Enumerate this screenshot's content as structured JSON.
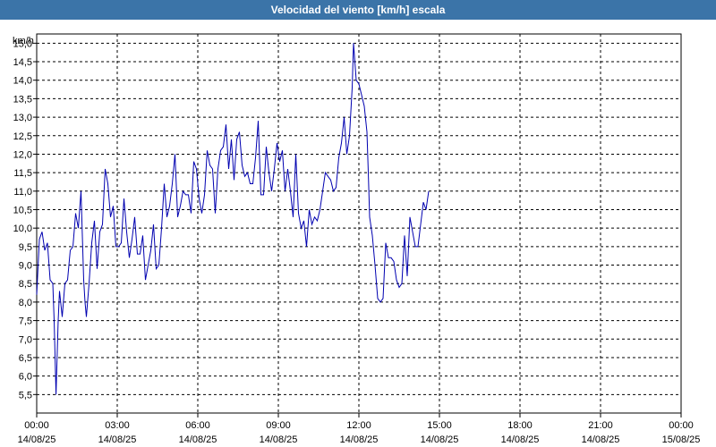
{
  "window": {
    "title": "Velocidad del viento [km/h] escala"
  },
  "colors": {
    "title_bar": "#3b74a8",
    "line": "#0000b0",
    "grid": "#000000",
    "background": "#ffffff"
  },
  "chart_data": {
    "type": "line",
    "title": "Velocidad del viento [km/h] escala",
    "ylabel": "km/h",
    "xlabel": "",
    "ylim": [
      5.0,
      15.25
    ],
    "grid": true,
    "yticks": [
      "5,5",
      "6,0",
      "6,5",
      "7,0",
      "7,5",
      "8,0",
      "8,5",
      "9,0",
      "9,5",
      "10,0",
      "10,5",
      "11,0",
      "11,5",
      "12,0",
      "12,5",
      "13,0",
      "13,5",
      "14,0",
      "14,5",
      "15,0"
    ],
    "xticks": [
      {
        "time": "00:00",
        "date": "14/08/25"
      },
      {
        "time": "03:00",
        "date": "14/08/25"
      },
      {
        "time": "06:00",
        "date": "14/08/25"
      },
      {
        "time": "09:00",
        "date": "14/08/25"
      },
      {
        "time": "12:00",
        "date": "14/08/25"
      },
      {
        "time": "15:00",
        "date": "14/08/25"
      },
      {
        "time": "18:00",
        "date": "14/08/25"
      },
      {
        "time": "21:00",
        "date": "14/08/25"
      },
      {
        "time": "00:00",
        "date": "15/08/25"
      }
    ],
    "series": [
      {
        "values": [
          [
            0.0,
            8.2
          ],
          [
            0.1,
            9.7
          ],
          [
            0.2,
            9.9
          ],
          [
            0.3,
            9.4
          ],
          [
            0.4,
            9.6
          ],
          [
            0.5,
            8.6
          ],
          [
            0.6,
            8.5
          ],
          [
            0.65,
            7.5
          ],
          [
            0.72,
            5.5
          ],
          [
            0.8,
            7.5
          ],
          [
            0.85,
            8.3
          ],
          [
            0.95,
            7.6
          ],
          [
            1.05,
            8.5
          ],
          [
            1.15,
            8.6
          ],
          [
            1.25,
            9.4
          ],
          [
            1.35,
            9.5
          ],
          [
            1.45,
            10.4
          ],
          [
            1.55,
            10.0
          ],
          [
            1.65,
            11.0
          ],
          [
            1.75,
            8.6
          ],
          [
            1.8,
            8.0
          ],
          [
            1.85,
            7.6
          ],
          [
            1.95,
            8.5
          ],
          [
            2.05,
            9.6
          ],
          [
            2.15,
            10.2
          ],
          [
            2.25,
            8.9
          ],
          [
            2.35,
            9.9
          ],
          [
            2.45,
            10.1
          ],
          [
            2.55,
            11.6
          ],
          [
            2.65,
            11.2
          ],
          [
            2.75,
            10.3
          ],
          [
            2.85,
            10.6
          ],
          [
            2.95,
            9.5
          ],
          [
            3.05,
            9.5
          ],
          [
            3.15,
            9.6
          ],
          [
            3.25,
            10.8
          ],
          [
            3.35,
            9.9
          ],
          [
            3.45,
            9.2
          ],
          [
            3.55,
            9.7
          ],
          [
            3.65,
            10.3
          ],
          [
            3.75,
            9.3
          ],
          [
            3.85,
            9.3
          ],
          [
            3.95,
            9.8
          ],
          [
            4.05,
            8.6
          ],
          [
            4.15,
            9.0
          ],
          [
            4.25,
            9.4
          ],
          [
            4.35,
            10.1
          ],
          [
            4.45,
            8.9
          ],
          [
            4.55,
            9.0
          ],
          [
            4.65,
            10.0
          ],
          [
            4.75,
            11.2
          ],
          [
            4.85,
            10.3
          ],
          [
            4.95,
            10.6
          ],
          [
            5.05,
            11.2
          ],
          [
            5.15,
            12.0
          ],
          [
            5.25,
            10.3
          ],
          [
            5.35,
            10.6
          ],
          [
            5.45,
            11.0
          ],
          [
            5.55,
            10.9
          ],
          [
            5.65,
            10.9
          ],
          [
            5.75,
            10.4
          ],
          [
            5.85,
            11.8
          ],
          [
            5.95,
            11.6
          ],
          [
            6.05,
            10.8
          ],
          [
            6.15,
            10.4
          ],
          [
            6.25,
            10.9
          ],
          [
            6.35,
            12.1
          ],
          [
            6.45,
            11.7
          ],
          [
            6.55,
            11.6
          ],
          [
            6.65,
            10.4
          ],
          [
            6.75,
            11.6
          ],
          [
            6.85,
            12.1
          ],
          [
            6.95,
            12.2
          ],
          [
            7.05,
            12.8
          ],
          [
            7.15,
            11.6
          ],
          [
            7.25,
            12.4
          ],
          [
            7.35,
            11.3
          ],
          [
            7.45,
            12.4
          ],
          [
            7.55,
            12.6
          ],
          [
            7.65,
            11.7
          ],
          [
            7.75,
            11.4
          ],
          [
            7.85,
            11.5
          ],
          [
            7.95,
            11.2
          ],
          [
            8.05,
            11.2
          ],
          [
            8.15,
            11.9
          ],
          [
            8.25,
            12.9
          ],
          [
            8.35,
            10.9
          ],
          [
            8.45,
            10.9
          ],
          [
            8.55,
            12.2
          ],
          [
            8.65,
            11.5
          ],
          [
            8.75,
            11.0
          ],
          [
            8.85,
            11.6
          ],
          [
            8.95,
            12.3
          ],
          [
            9.05,
            11.8
          ],
          [
            9.15,
            12.1
          ],
          [
            9.25,
            11.0
          ],
          [
            9.35,
            11.6
          ],
          [
            9.45,
            11.0
          ],
          [
            9.55,
            10.3
          ],
          [
            9.65,
            12.0
          ],
          [
            9.75,
            10.4
          ],
          [
            9.85,
            10.0
          ],
          [
            9.95,
            10.2
          ],
          [
            10.05,
            9.5
          ],
          [
            10.15,
            10.5
          ],
          [
            10.25,
            10.1
          ],
          [
            10.35,
            10.3
          ],
          [
            10.45,
            10.2
          ],
          [
            10.55,
            10.5
          ],
          [
            10.65,
            11.0
          ],
          [
            10.75,
            11.5
          ],
          [
            10.85,
            11.4
          ],
          [
            10.95,
            11.3
          ],
          [
            11.05,
            11.0
          ],
          [
            11.15,
            11.1
          ],
          [
            11.25,
            11.9
          ],
          [
            11.35,
            12.3
          ],
          [
            11.45,
            13.0
          ],
          [
            11.55,
            12.0
          ],
          [
            11.65,
            12.5
          ],
          [
            11.75,
            13.8
          ],
          [
            11.8,
            15.0
          ],
          [
            11.9,
            14.0
          ],
          [
            12.0,
            13.9
          ],
          [
            12.1,
            13.6
          ],
          [
            12.2,
            13.3
          ],
          [
            12.3,
            12.6
          ],
          [
            12.35,
            11.5
          ],
          [
            12.4,
            10.3
          ],
          [
            12.5,
            9.8
          ],
          [
            12.6,
            9.0
          ],
          [
            12.7,
            8.1
          ],
          [
            12.8,
            8.0
          ],
          [
            12.9,
            8.1
          ],
          [
            13.0,
            9.6
          ],
          [
            13.1,
            9.2
          ],
          [
            13.2,
            9.2
          ],
          [
            13.3,
            9.1
          ],
          [
            13.4,
            8.6
          ],
          [
            13.5,
            8.4
          ],
          [
            13.6,
            8.5
          ],
          [
            13.7,
            9.8
          ],
          [
            13.8,
            8.7
          ],
          [
            13.9,
            10.3
          ],
          [
            14.0,
            9.9
          ],
          [
            14.1,
            9.5
          ],
          [
            14.2,
            9.5
          ],
          [
            14.3,
            10.1
          ],
          [
            14.4,
            10.7
          ],
          [
            14.5,
            10.5
          ],
          [
            14.6,
            11.0
          ]
        ]
      }
    ]
  }
}
